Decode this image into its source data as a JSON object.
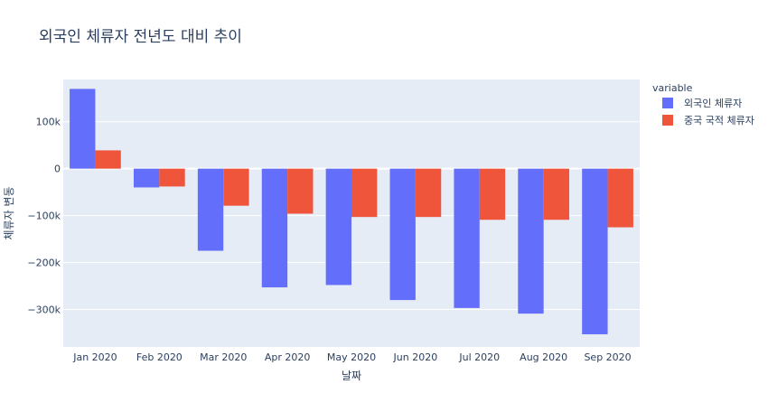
{
  "chart_data": {
    "type": "bar",
    "title": "외국인 체류자 전년도 대비 추이",
    "xlabel": "날짜",
    "ylabel": "체류자 변동",
    "categories": [
      "Jan 2020",
      "Feb 2020",
      "Mar 2020",
      "Apr 2020",
      "May 2020",
      "Jun 2020",
      "Jul 2020",
      "Aug 2020",
      "Sep 2020"
    ],
    "series": [
      {
        "name": "외국인 체류자",
        "color": "#636efa",
        "values": [
          170000,
          -40000,
          -175000,
          -253000,
          -248000,
          -280000,
          -297000,
          -309000,
          -353000
        ]
      },
      {
        "name": "중국 국적 체류자",
        "color": "#ef553b",
        "values": [
          39000,
          -38000,
          -79000,
          -96000,
          -103000,
          -103000,
          -109000,
          -109000,
          -125000
        ]
      }
    ],
    "ylim": [
      -380000,
      190000
    ],
    "yticks": [
      {
        "value": 100000,
        "label": "100k"
      },
      {
        "value": 0,
        "label": "0"
      },
      {
        "value": -100000,
        "label": "−100k"
      },
      {
        "value": -200000,
        "label": "−200k"
      },
      {
        "value": -300000,
        "label": "−300k"
      }
    ],
    "legend_title": "variable",
    "legend_position": "top-right",
    "grid": true,
    "plot_bg": "#e5ecf6",
    "grid_color": "#ffffff"
  }
}
